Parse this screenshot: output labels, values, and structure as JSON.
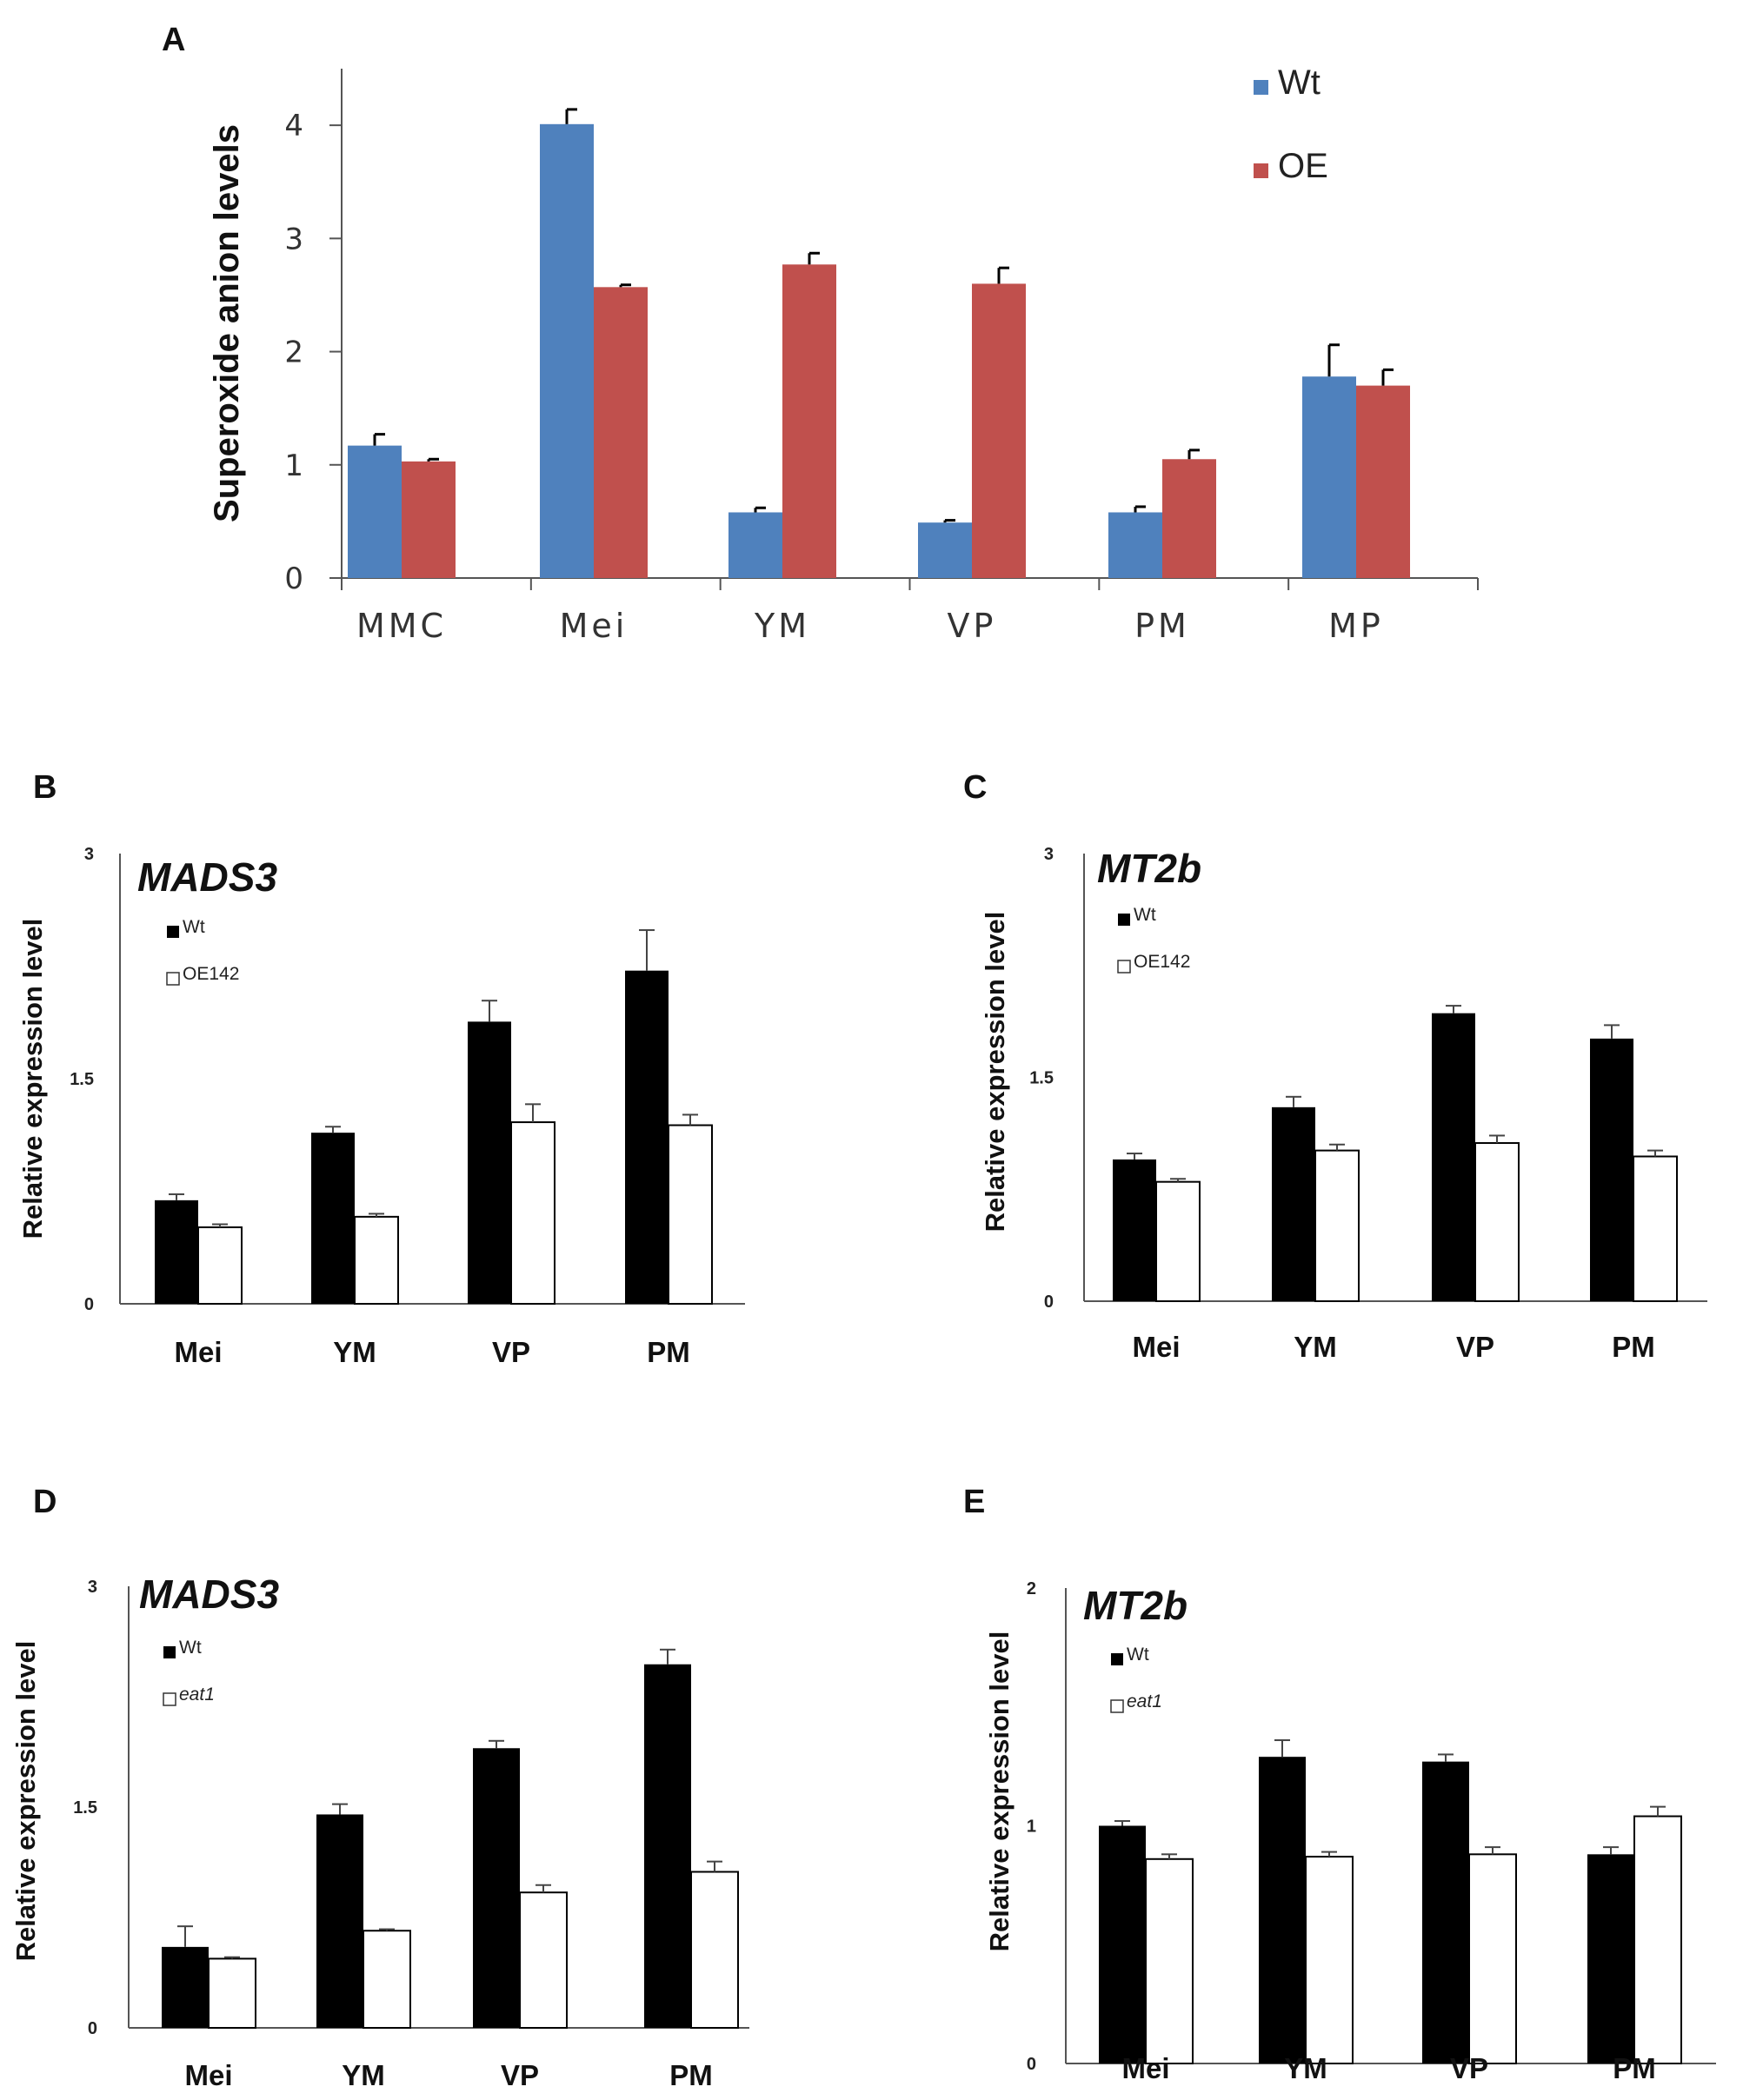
{
  "chart_data": [
    {
      "panel": "A",
      "type": "bar",
      "title": "",
      "xlabel": "",
      "ylabel": "Superoxide anion levels",
      "ylim": [
        0,
        4.5
      ],
      "yticks": [
        "0",
        "1",
        "2",
        "3",
        "4"
      ],
      "categories": [
        "MMC",
        "Mei",
        "YM",
        "VP",
        "PM",
        "MP"
      ],
      "series": [
        {
          "name": "Wt",
          "color": "#4f81bd",
          "values": [
            1.17,
            4.01,
            0.58,
            0.49,
            0.58,
            1.78
          ],
          "errors": [
            0.1,
            0.13,
            0.04,
            0.02,
            0.05,
            0.28
          ]
        },
        {
          "name": "OE",
          "color": "#c0504d",
          "values": [
            1.03,
            2.57,
            2.77,
            2.6,
            1.05,
            1.7
          ],
          "errors": [
            0.02,
            0.02,
            0.1,
            0.14,
            0.08,
            0.14
          ]
        }
      ],
      "legend": "top-right"
    },
    {
      "panel": "B",
      "type": "bar",
      "gene_label": "MADS3",
      "ylabel": "Relative expression level",
      "ylim": [
        0,
        3
      ],
      "yticks": [
        "0",
        "1.5",
        "3"
      ],
      "categories": [
        "Mei",
        "YM",
        "VP",
        "PM"
      ],
      "series": [
        {
          "name": "Wt",
          "color": "#000000",
          "values": [
            0.69,
            1.14,
            1.88,
            2.22
          ],
          "errors": [
            0.04,
            0.04,
            0.14,
            0.27
          ]
        },
        {
          "name": "OE142",
          "color": "#ffffff",
          "values": [
            0.51,
            0.58,
            1.21,
            1.19
          ],
          "errors": [
            0.02,
            0.02,
            0.12,
            0.07
          ]
        }
      ],
      "legend": "top-left"
    },
    {
      "panel": "C",
      "type": "bar",
      "gene_label": "MT2b",
      "ylabel": "Relative expression level",
      "ylim": [
        0,
        3
      ],
      "yticks": [
        "0",
        "1.5",
        "3"
      ],
      "categories": [
        "Mei",
        "YM",
        "VP",
        "PM"
      ],
      "series": [
        {
          "name": "Wt",
          "color": "#000000",
          "values": [
            0.95,
            1.3,
            1.93,
            1.76
          ],
          "errors": [
            0.04,
            0.07,
            0.05,
            0.09
          ]
        },
        {
          "name": "OE142",
          "color": "#ffffff",
          "values": [
            0.8,
            1.01,
            1.06,
            0.97
          ],
          "errors": [
            0.02,
            0.04,
            0.05,
            0.04
          ]
        }
      ],
      "legend": "top-left"
    },
    {
      "panel": "D",
      "type": "bar",
      "gene_label": "MADS3",
      "ylabel": "Relative expression level",
      "ylim": [
        0,
        3
      ],
      "yticks": [
        "0",
        "1.5",
        "3"
      ],
      "categories": [
        "Mei",
        "YM",
        "VP",
        "PM"
      ],
      "series": [
        {
          "name": "Wt",
          "color": "#000000",
          "values": [
            0.55,
            1.45,
            1.9,
            2.47
          ],
          "errors": [
            0.14,
            0.07,
            0.05,
            0.1
          ]
        },
        {
          "name": "eat1",
          "color": "#ffffff",
          "values": [
            0.47,
            0.66,
            0.92,
            1.06
          ],
          "errors": [
            0.01,
            0.01,
            0.05,
            0.07
          ]
        }
      ],
      "legend": "top-left"
    },
    {
      "panel": "E",
      "type": "bar",
      "gene_label": "MT2b",
      "ylabel": "Relative expression level",
      "ylim": [
        0,
        2
      ],
      "yticks": [
        "0",
        "1",
        "2"
      ],
      "categories": [
        "Mei",
        "YM",
        "VP",
        "PM"
      ],
      "series": [
        {
          "name": "Wt",
          "color": "#000000",
          "values": [
            1.0,
            1.29,
            1.27,
            0.88
          ],
          "errors": [
            0.02,
            0.07,
            0.03,
            0.03
          ]
        },
        {
          "name": "eat1",
          "color": "#ffffff",
          "values": [
            0.86,
            0.87,
            0.88,
            1.04
          ],
          "errors": [
            0.02,
            0.02,
            0.03,
            0.04
          ]
        }
      ],
      "legend": "top-left"
    }
  ]
}
